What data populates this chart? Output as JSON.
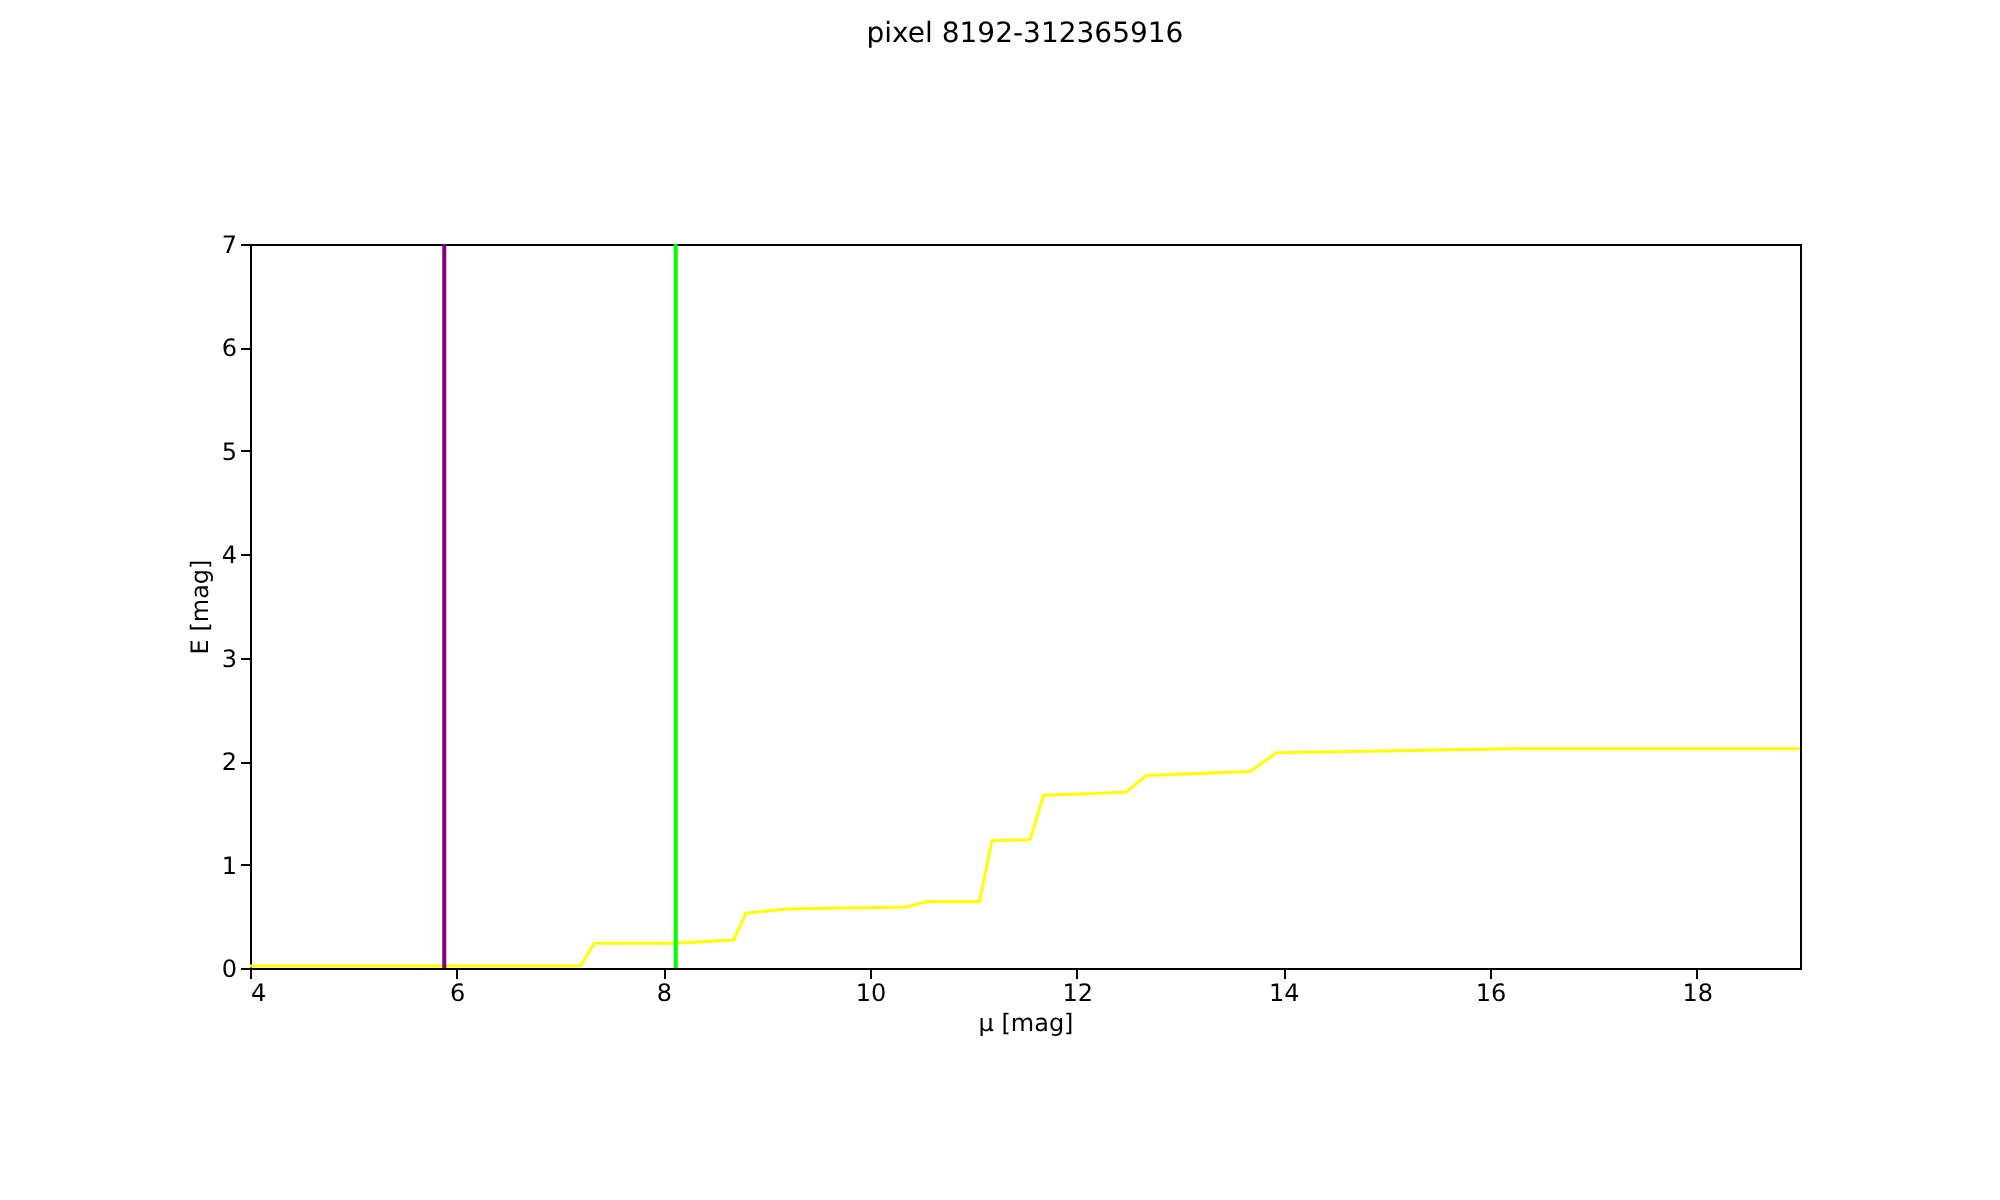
{
  "chart_data": {
    "type": "line",
    "title": "pixel 8192-312365916",
    "xlabel": "μ [mag]",
    "ylabel": "E [mag]",
    "x": [
      4,
      7.2,
      7.33,
      8.1,
      8.68,
      8.8,
      9.19,
      10.35,
      10.54,
      11.06,
      11.18,
      11.55,
      11.68,
      12.48,
      12.67,
      13.68,
      13.93,
      16.2,
      19
    ],
    "series": [
      {
        "color": "#ffff00",
        "values": [
          0.02,
          0.02,
          0.24,
          0.24,
          0.27,
          0.53,
          0.57,
          0.59,
          0.64,
          0.64,
          1.23,
          1.24,
          1.67,
          1.7,
          1.86,
          1.9,
          2.08,
          2.12,
          2.12
        ]
      }
    ],
    "xlim": [
      4,
      19
    ],
    "ylim": [
      0,
      7
    ],
    "xticks": [
      4,
      6,
      8,
      10,
      12,
      14,
      16,
      18
    ],
    "yticks": [
      0,
      1,
      2,
      3,
      4,
      5,
      6,
      7
    ],
    "ref_lines": [
      {
        "axis": "x",
        "value": 5.88,
        "color": "#800080"
      },
      {
        "axis": "x",
        "value": 8.12,
        "color": "#00ff00"
      }
    ],
    "grid": false
  }
}
